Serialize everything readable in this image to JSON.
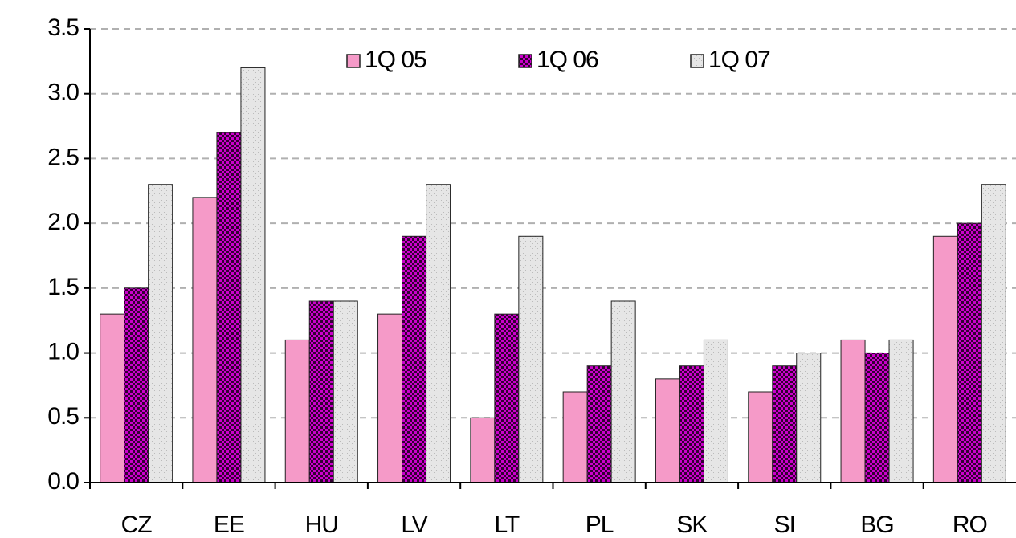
{
  "chart_data": {
    "type": "bar",
    "categories": [
      "CZ",
      "EE",
      "HU",
      "LV",
      "LT",
      "PL",
      "SK",
      "SI",
      "BG",
      "RO"
    ],
    "series": [
      {
        "name": "1Q 05",
        "color": "#f59ac8",
        "values": [
          1.3,
          2.2,
          1.1,
          1.3,
          0.5,
          0.7,
          0.8,
          0.7,
          1.1,
          1.9
        ]
      },
      {
        "name": "1Q 06",
        "color": "#cc00cc",
        "values": [
          1.5,
          2.7,
          1.4,
          1.9,
          1.3,
          0.9,
          0.9,
          0.9,
          1.0,
          2.0
        ]
      },
      {
        "name": "1Q 07",
        "color": "#e6e6e6",
        "values": [
          2.3,
          3.2,
          1.4,
          2.3,
          1.9,
          1.4,
          1.1,
          1.0,
          1.1,
          2.3
        ]
      }
    ],
    "ylim": [
      0,
      3.5
    ],
    "yticks": [
      {
        "value": 0,
        "label": "0.0"
      },
      0.5,
      {
        "value": 1,
        "label": "1.0"
      },
      1.5,
      {
        "value": 2,
        "label": "2.0"
      },
      2.5,
      {
        "value": 3,
        "label": "3.0"
      },
      3.5
    ],
    "grid": true,
    "legend": "top"
  }
}
